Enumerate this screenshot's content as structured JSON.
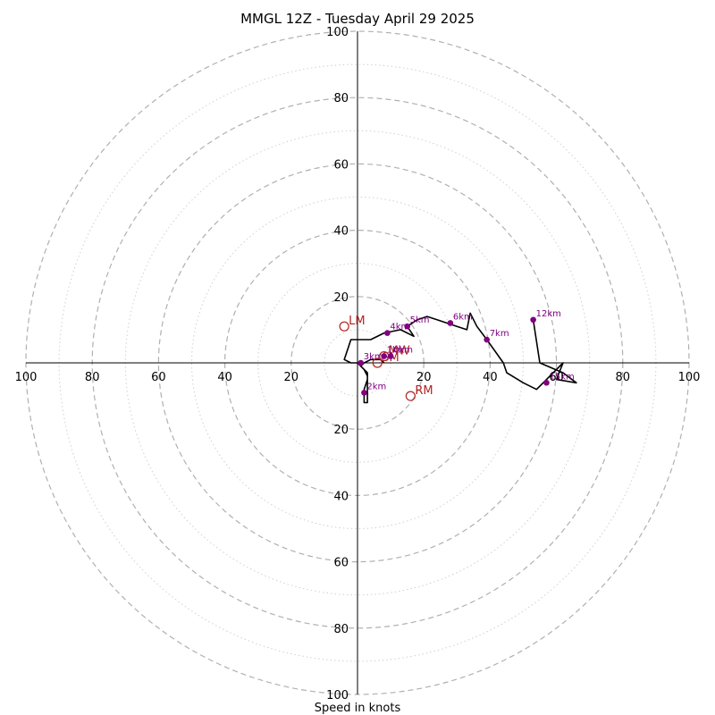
{
  "chart_data": {
    "type": "hodograph",
    "title": "MMGL 12Z - Tuesday April 29 2025",
    "xlabel": "Speed in knots",
    "range": [
      -100,
      100
    ],
    "ring_major": [
      20,
      40,
      60,
      80,
      100
    ],
    "ring_minor": [
      10,
      30,
      50,
      70,
      90
    ],
    "tick_values": [
      100,
      80,
      60,
      40,
      20
    ],
    "tick_labels_x_left": [
      "100",
      "80",
      "60",
      "40",
      "20"
    ],
    "tick_labels_x_right": [
      "20",
      "40",
      "60",
      "80",
      "100"
    ],
    "tick_labels_y_top": [
      "20",
      "40",
      "60",
      "80",
      "100"
    ],
    "tick_labels_y_bottom": [
      "20",
      "40",
      "60",
      "80",
      "100"
    ],
    "trace": [
      [
        8,
        0
      ],
      [
        7,
        1
      ],
      [
        4,
        1
      ],
      [
        2,
        0
      ],
      [
        1,
        -1
      ],
      [
        2,
        -2
      ],
      [
        3,
        -3
      ],
      [
        3,
        -5
      ],
      [
        2,
        -8
      ],
      [
        2,
        -10
      ],
      [
        2,
        -12
      ],
      [
        3,
        -12
      ],
      [
        3,
        -8
      ],
      [
        3,
        -4
      ],
      [
        2,
        -2
      ],
      [
        0,
        0
      ],
      [
        -2,
        0
      ],
      [
        -4,
        1
      ],
      [
        -3,
        4
      ],
      [
        -2,
        7
      ],
      [
        4,
        7
      ],
      [
        8,
        9
      ],
      [
        13,
        10
      ],
      [
        17,
        8
      ],
      [
        15,
        11
      ],
      [
        18,
        13
      ],
      [
        21,
        14
      ],
      [
        24,
        13
      ],
      [
        27,
        12
      ],
      [
        30,
        11
      ],
      [
        33,
        10
      ],
      [
        34,
        15
      ],
      [
        36,
        11
      ],
      [
        39,
        7
      ],
      [
        44,
        0
      ],
      [
        45,
        -3
      ],
      [
        50,
        -6
      ],
      [
        54,
        -8
      ],
      [
        56,
        -6
      ],
      [
        58,
        -4
      ],
      [
        60,
        -2
      ],
      [
        62,
        0
      ],
      [
        60,
        -5
      ],
      [
        66,
        -6
      ],
      [
        62,
        -3
      ],
      [
        55,
        0
      ],
      [
        53,
        13
      ]
    ],
    "height_markers": [
      {
        "label": "0km",
        "u": 10,
        "v": 2
      },
      {
        "label": "1km",
        "u": 8,
        "v": 2
      },
      {
        "label": "2km",
        "u": 2,
        "v": -9
      },
      {
        "label": "3km",
        "u": 1,
        "v": 0
      },
      {
        "label": "4km",
        "u": 9,
        "v": 9
      },
      {
        "label": "5km",
        "u": 15,
        "v": 11
      },
      {
        "label": "6km",
        "u": 28,
        "v": 12
      },
      {
        "label": "7km",
        "u": 39,
        "v": 7
      },
      {
        "label": "12km",
        "u": 53,
        "v": 13
      },
      {
        "label": "15km",
        "u": 57,
        "v": -6
      }
    ],
    "motion_markers": [
      {
        "label": "LM",
        "u": -4,
        "v": 11
      },
      {
        "label": "RM",
        "u": 16,
        "v": -10
      },
      {
        "label": "MW",
        "u": 8,
        "v": 2
      },
      {
        "label": "SM",
        "u": 6,
        "v": 0
      }
    ]
  },
  "colors": {
    "trace": "#000000",
    "height_marker": "#800080",
    "motion_marker": "#b22222",
    "ring": "#b0b0b0",
    "axis": "#000000"
  }
}
